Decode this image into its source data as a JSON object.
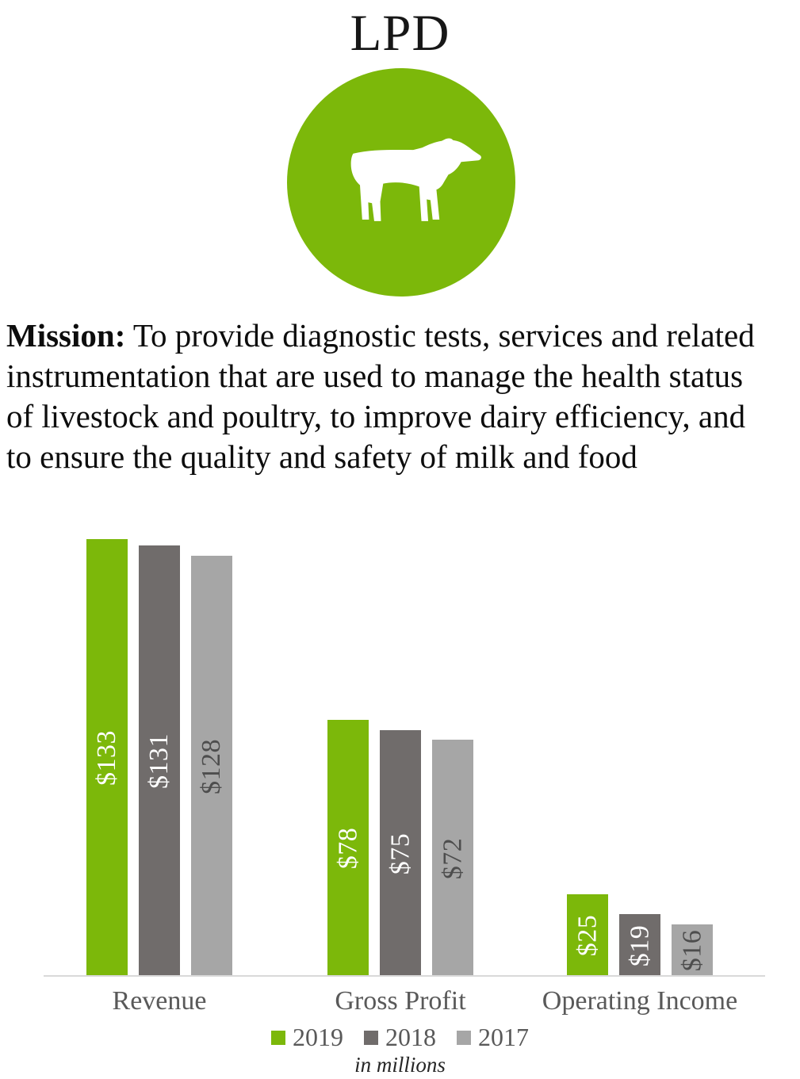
{
  "title": "LPD",
  "icon": {
    "name": "cow-icon",
    "circle_color": "#7CB80A",
    "glyph_color": "#FFFFFF"
  },
  "mission": {
    "label": "Mission:",
    "text": " To provide diagnostic tests, services and related\ninstrumentation that are used to manage the health status\nof livestock and poultry, to improve dairy efficiency, and\nto ensure the quality and safety of milk and food"
  },
  "chart_data": {
    "type": "bar",
    "title": "",
    "categories": [
      "Revenue",
      "Gross Profit",
      "Operating Income"
    ],
    "series": [
      {
        "name": "2019",
        "color": "#7CB80A",
        "label_color": "#FFFFFF",
        "values": [
          133,
          78,
          25
        ]
      },
      {
        "name": "2018",
        "color": "#706C6B",
        "label_color": "#FFFFFF",
        "values": [
          131,
          75,
          19
        ]
      },
      {
        "name": "2017",
        "color": "#A6A6A6",
        "label_color": "#4D4D4D",
        "values": [
          128,
          72,
          16
        ]
      }
    ],
    "data_labels": [
      [
        "$133",
        "$78",
        "$25"
      ],
      [
        "$131",
        "$75",
        "$19"
      ],
      [
        "$128",
        "$72",
        "$16"
      ]
    ],
    "value_prefix": "$",
    "xlabel": "",
    "ylabel": "",
    "ylim": [
      0,
      140
    ],
    "grid": false,
    "legend_position": "bottom",
    "axis_line_color": "#D9D9D9",
    "category_label_color": "#595959",
    "note": "in millions"
  }
}
